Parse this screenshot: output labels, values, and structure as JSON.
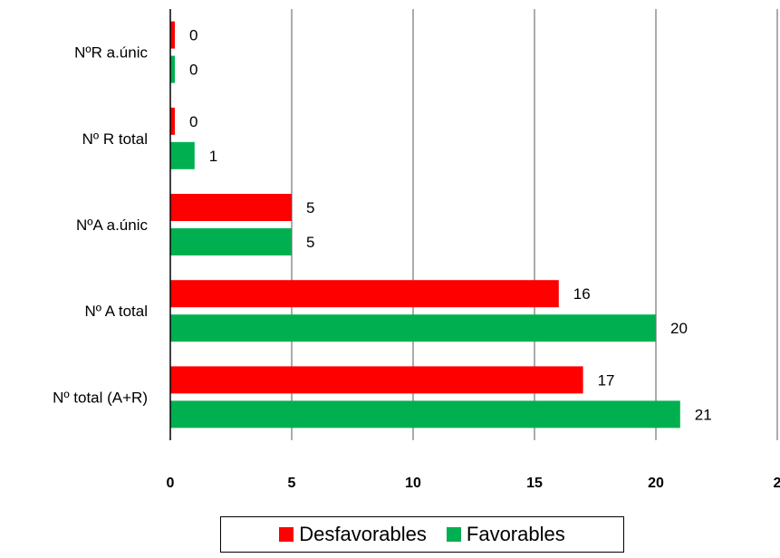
{
  "chart_data": {
    "type": "bar",
    "orientation": "horizontal",
    "categories": [
      "NºR a.únic",
      "Nº R total",
      "NºA a.únic",
      "Nº A total",
      "Nº total  (A+R)"
    ],
    "series": [
      {
        "name": "Desfavorables",
        "color": "#ff0000",
        "values": [
          0,
          0,
          5,
          16,
          17
        ]
      },
      {
        "name": "Favorables",
        "color": "#00b050",
        "values": [
          0,
          1,
          5,
          20,
          21
        ]
      }
    ],
    "value_labels": {
      "Desfavorables": [
        "0",
        "0",
        "5",
        "16",
        "17"
      ],
      "Favorables": [
        "0",
        "1",
        "5",
        "20",
        "21"
      ]
    },
    "xlim": [
      0,
      25
    ],
    "xticks": [
      "0",
      "5",
      "10",
      "15",
      "20",
      "2"
    ],
    "grid": true,
    "legend_position": "bottom"
  }
}
